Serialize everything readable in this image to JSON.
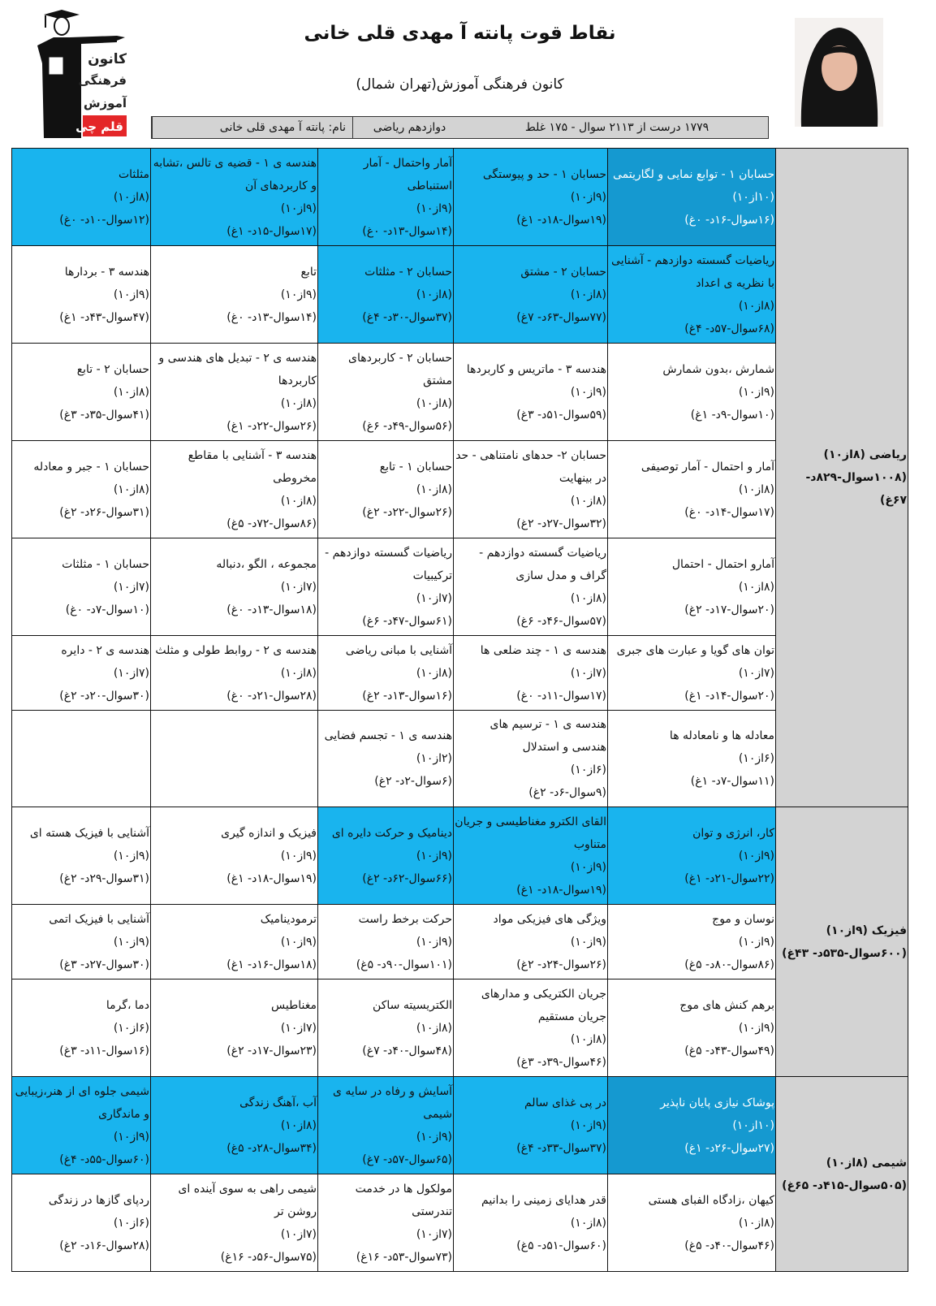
{
  "header": {
    "title": "نقاط قوت پانته آ مهدی قلی خانی",
    "subtitle": "کانون فرهنگی آموزش(تهران شمال)",
    "name": "نام: پانته آ مهدی قلی خانی",
    "grade": "دوازدهم ریاضی",
    "summary": "۱۷۷۹ درست از ۲۱۱۳ سوال - ۱۷۵ غلط"
  },
  "logo": {
    "lines": [
      "کانون",
      "فرهنگی",
      "آموزش",
      "قلم چی"
    ],
    "accent": "#e42628"
  },
  "colors": {
    "top": "#1599d0",
    "strong": "#19b4ee",
    "subject_bg": "#d3d3d3"
  },
  "sections": [
    {
      "subject": "ریاضی (۸از۱۰) (۱۰۰۸سوال-۸۲۹د- ۶۷غ)",
      "rows": [
        [
          {
            "level": "dark",
            "title": "حسابان ۱ - توابع نمایی و لگاریتمی",
            "score": "(۱۰از۱۰)",
            "stats": "(۱۶سوال-۱۶د- ۰غ)"
          },
          {
            "level": "light",
            "title": "حسابان ۱ - حد و پیوستگی",
            "score": "(۹از۱۰)",
            "stats": "(۱۹سوال-۱۸د- ۱غ)"
          },
          {
            "level": "light",
            "title": "آمار واحتمال - آمار استنباطی",
            "score": "(۹از۱۰)",
            "stats": "(۱۴سوال-۱۳د- ۰غ)"
          },
          {
            "level": "light",
            "title": "هندسه ی ۱ - قضیه ی تالس ،تشابه و کاربردهای آن",
            "score": "(۹از۱۰)",
            "stats": "(۱۷سوال-۱۵د- ۱غ)"
          },
          {
            "level": "light",
            "title": "مثلثات",
            "score": "(۸از۱۰)",
            "stats": "(۱۲سوال-۱۰د- ۰غ)"
          }
        ],
        [
          {
            "level": "light",
            "title": "ریاضیات گسسته دوازدهم - آشنایی با نظریه ی اعداد",
            "score": "(۸از۱۰)",
            "stats": "(۶۸سوال-۵۷د- ۴غ)"
          },
          {
            "level": "light",
            "title": "حسابان ۲ - مشتق",
            "score": "(۸از۱۰)",
            "stats": "(۷۷سوال-۶۳د- ۷غ)"
          },
          {
            "level": "light",
            "title": "حسابان ۲ - مثلثات",
            "score": "(۸از۱۰)",
            "stats": "(۳۷سوال-۳۰د- ۴غ)"
          },
          {
            "level": "none",
            "title": "تابع",
            "score": "(۹از۱۰)",
            "stats": "(۱۴سوال-۱۳د- ۰غ)"
          },
          {
            "level": "none",
            "title": "هندسه ۳ - بردارها",
            "score": "(۹از۱۰)",
            "stats": "(۴۷سوال-۴۳د- ۱غ)"
          }
        ],
        [
          {
            "level": "none",
            "title": "شمارش ،بدون شمارش",
            "score": "(۹از۱۰)",
            "stats": "(۱۰سوال-۹د- ۱غ)"
          },
          {
            "level": "none",
            "title": "هندسه ۳ - ماتریس و کاربردها",
            "score": "(۹از۱۰)",
            "stats": "(۵۹سوال-۵۱د- ۳غ)"
          },
          {
            "level": "none",
            "title": "حسابان ۲ - کاربردهای مشتق",
            "score": "(۸از۱۰)",
            "stats": "(۵۶سوال-۴۹د- ۶غ)"
          },
          {
            "level": "none",
            "title": "هندسه ی ۲ - تبدیل های هندسی و کاربردها",
            "score": "(۸از۱۰)",
            "stats": "(۲۶سوال-۲۲د- ۱غ)"
          },
          {
            "level": "none",
            "title": "حسابان ۲ - تابع",
            "score": "(۸از۱۰)",
            "stats": "(۴۱سوال-۳۵د- ۳غ)"
          }
        ],
        [
          {
            "level": "none",
            "title": "آمار و احتمال - آمار توصیفی",
            "score": "(۸از۱۰)",
            "stats": "(۱۷سوال-۱۴د- ۰غ)"
          },
          {
            "level": "none",
            "title": "حسابان ۲- حدهای نامتناهی - حد در بینهایت",
            "score": "(۸از۱۰)",
            "stats": "(۳۲سوال-۲۷د- ۲غ)"
          },
          {
            "level": "none",
            "title": "حسابان ۱ - تابع",
            "score": "(۸از۱۰)",
            "stats": "(۲۶سوال-۲۲د- ۲غ)"
          },
          {
            "level": "none",
            "title": "هندسه ۳ - آشنایی با مقاطع مخروطی",
            "score": "(۸از۱۰)",
            "stats": "(۸۶سوال-۷۲د- ۵غ)"
          },
          {
            "level": "none",
            "title": "حسابان ۱ - جبر و معادله",
            "score": "(۸از۱۰)",
            "stats": "(۳۱سوال-۲۶د- ۲غ)"
          }
        ],
        [
          {
            "level": "none",
            "title": "آمارو احتمال - احتمال",
            "score": "(۸از۱۰)",
            "stats": "(۲۰سوال-۱۷د- ۲غ)"
          },
          {
            "level": "none",
            "title": "ریاضیات گسسته دوازدهم - گراف و مدل سازی",
            "score": "(۸از۱۰)",
            "stats": "(۵۷سوال-۴۶د- ۶غ)"
          },
          {
            "level": "none",
            "title": "ریاضیات گسسته دوازدهم - ترکیبیات",
            "score": "(۷از۱۰)",
            "stats": "(۶۱سوال-۴۷د- ۶غ)"
          },
          {
            "level": "none",
            "title": "مجموعه ، الگو ،دنباله",
            "score": "(۷از۱۰)",
            "stats": "(۱۸سوال-۱۳د- ۰غ)"
          },
          {
            "level": "none",
            "title": "حسابان ۱ - مثلثات",
            "score": "(۷از۱۰)",
            "stats": "(۱۰سوال-۷د- ۰غ)"
          }
        ],
        [
          {
            "level": "none",
            "title": "توان های گویا و عبارت های جبری",
            "score": "(۷از۱۰)",
            "stats": "(۲۰سوال-۱۴د- ۱غ)"
          },
          {
            "level": "none",
            "title": "هندسه ی ۱ - چند ضلعی ها",
            "score": "(۷از۱۰)",
            "stats": "(۱۷سوال-۱۱د- ۰غ)"
          },
          {
            "level": "none",
            "title": "آشنایی با مبانی ریاضی",
            "score": "(۸از۱۰)",
            "stats": "(۱۶سوال-۱۳د- ۲غ)"
          },
          {
            "level": "none",
            "title": "هندسه ی ۲ - روابط طولی و مثلث",
            "score": "(۸از۱۰)",
            "stats": "(۲۸سوال-۲۱د- ۰غ)"
          },
          {
            "level": "none",
            "title": "هندسه ی ۲ - دایره",
            "score": "(۷از۱۰)",
            "stats": "(۳۰سوال-۲۰د- ۲غ)"
          }
        ],
        [
          {
            "level": "none",
            "title": "معادله ها و نامعادله ها",
            "score": "(۶از۱۰)",
            "stats": "(۱۱سوال-۷د- ۱غ)"
          },
          {
            "level": "none",
            "title": "هندسه ی ۱ - ترسیم های هندسی و استدلال",
            "score": "(۶از۱۰)",
            "stats": "(۹سوال-۶د- ۲غ)"
          },
          {
            "level": "none",
            "title": "هندسه ی ۱ - تجسم فضایی",
            "score": "(۲از۱۰)",
            "stats": "(۶سوال-۲د- ۲غ)"
          },
          null,
          null
        ]
      ]
    },
    {
      "subject": "فیزیک (۹از۱۰) (۶۰۰سوال-۵۳۵د- ۴۳غ)",
      "rows": [
        [
          {
            "level": "light",
            "title": "کار، انرژی و توان",
            "score": "(۹از۱۰)",
            "stats": "(۲۲سوال-۲۱د- ۱غ)"
          },
          {
            "level": "light",
            "title": "القای الکترو مغناطیسی و جریان متناوب",
            "score": "(۹از۱۰)",
            "stats": "(۱۹سوال-۱۸د- ۱غ)"
          },
          {
            "level": "light",
            "title": "دینامیک و حرکت دایره ای",
            "score": "(۹از۱۰)",
            "stats": "(۶۶سوال-۶۲د- ۲غ)"
          },
          {
            "level": "none",
            "title": "فیزیک و اندازه گیری",
            "score": "(۹از۱۰)",
            "stats": "(۱۹سوال-۱۸د- ۱غ)"
          },
          {
            "level": "none",
            "title": "آشنایی با فیزیک هسته ای",
            "score": "(۹از۱۰)",
            "stats": "(۳۱سوال-۲۹د- ۲غ)"
          }
        ],
        [
          {
            "level": "none",
            "title": "نوسان و موج",
            "score": "(۹از۱۰)",
            "stats": "(۸۶سوال-۸۰د- ۵غ)"
          },
          {
            "level": "none",
            "title": "ویژگی های فیزیکی مواد",
            "score": "(۹از۱۰)",
            "stats": "(۲۶سوال-۲۴د- ۲غ)"
          },
          {
            "level": "none",
            "title": "حرکت برخط راست",
            "score": "(۹از۱۰)",
            "stats": "(۱۰۱سوال-۹۰د- ۵غ)"
          },
          {
            "level": "none",
            "title": "ترمودینامیک",
            "score": "(۹از۱۰)",
            "stats": "(۱۸سوال-۱۶د- ۱غ)"
          },
          {
            "level": "none",
            "title": "آشنایی با فیزیک اتمی",
            "score": "(۹از۱۰)",
            "stats": "(۳۰سوال-۲۷د- ۳غ)"
          }
        ],
        [
          {
            "level": "none",
            "title": "برهم کنش های موج",
            "score": "(۹از۱۰)",
            "stats": "(۴۹سوال-۴۳د- ۵غ)"
          },
          {
            "level": "none",
            "title": "جریان الکتریکی و مدارهای جریان مستقیم",
            "score": "(۸از۱۰)",
            "stats": "(۴۶سوال-۳۹د- ۳غ)"
          },
          {
            "level": "none",
            "title": "الکتریسیته ساکن",
            "score": "(۸از۱۰)",
            "stats": "(۴۸سوال-۴۰د- ۷غ)"
          },
          {
            "level": "none",
            "title": "مغناطیس",
            "score": "(۷از۱۰)",
            "stats": "(۲۳سوال-۱۷د- ۲غ)"
          },
          {
            "level": "none",
            "title": "دما ،گرما",
            "score": "(۶از۱۰)",
            "stats": "(۱۶سوال-۱۱د- ۳غ)"
          }
        ]
      ]
    },
    {
      "subject": "شیمی (۸از۱۰) (۵۰۵سوال-۴۱۵د- ۶۵غ)",
      "rows": [
        [
          {
            "level": "dark",
            "title": "پوشاک نیازی پایان ناپذیر",
            "score": "(۱۰از۱۰)",
            "stats": "(۲۷سوال-۲۶د- ۱غ)"
          },
          {
            "level": "light",
            "title": "در پی غذای سالم",
            "score": "(۹از۱۰)",
            "stats": "(۳۷سوال-۳۳د- ۴غ)"
          },
          {
            "level": "light",
            "title": "آسایش و رفاه در سایه ی شیمی",
            "score": "(۹از۱۰)",
            "stats": "(۶۵سوال-۵۷د- ۷غ)"
          },
          {
            "level": "light",
            "title": "آب ،آهنگ زندگی",
            "score": "(۸از۱۰)",
            "stats": "(۳۴سوال-۲۸د- ۵غ)"
          },
          {
            "level": "light",
            "title": "شیمی جلوه ای از هنر،زیبایی و ماندگاری",
            "score": "(۹از۱۰)",
            "stats": "(۶۰سوال-۵۵د- ۴غ)"
          }
        ],
        [
          {
            "level": "none",
            "title": "کیهان ،زادگاه الفبای هستی",
            "score": "(۸از۱۰)",
            "stats": "(۴۶سوال-۴۰د- ۵غ)"
          },
          {
            "level": "none",
            "title": "قدر هدایای زمینی را بدانیم",
            "score": "(۸از۱۰)",
            "stats": "(۶۰سوال-۵۱د- ۵غ)"
          },
          {
            "level": "none",
            "title": "مولکول ها در خدمت تندرستی",
            "score": "(۷از۱۰)",
            "stats": "(۷۳سوال-۵۳د- ۱۶غ)"
          },
          {
            "level": "none",
            "title": "شیمی راهی به سوی آینده ای روشن تر",
            "score": "(۷از۱۰)",
            "stats": "(۷۵سوال-۵۶د- ۱۶غ)"
          },
          {
            "level": "none",
            "title": "ردپای گازها در زندگی",
            "score": "(۶از۱۰)",
            "stats": "(۲۸سوال-۱۶د- ۲غ)"
          }
        ]
      ]
    }
  ]
}
